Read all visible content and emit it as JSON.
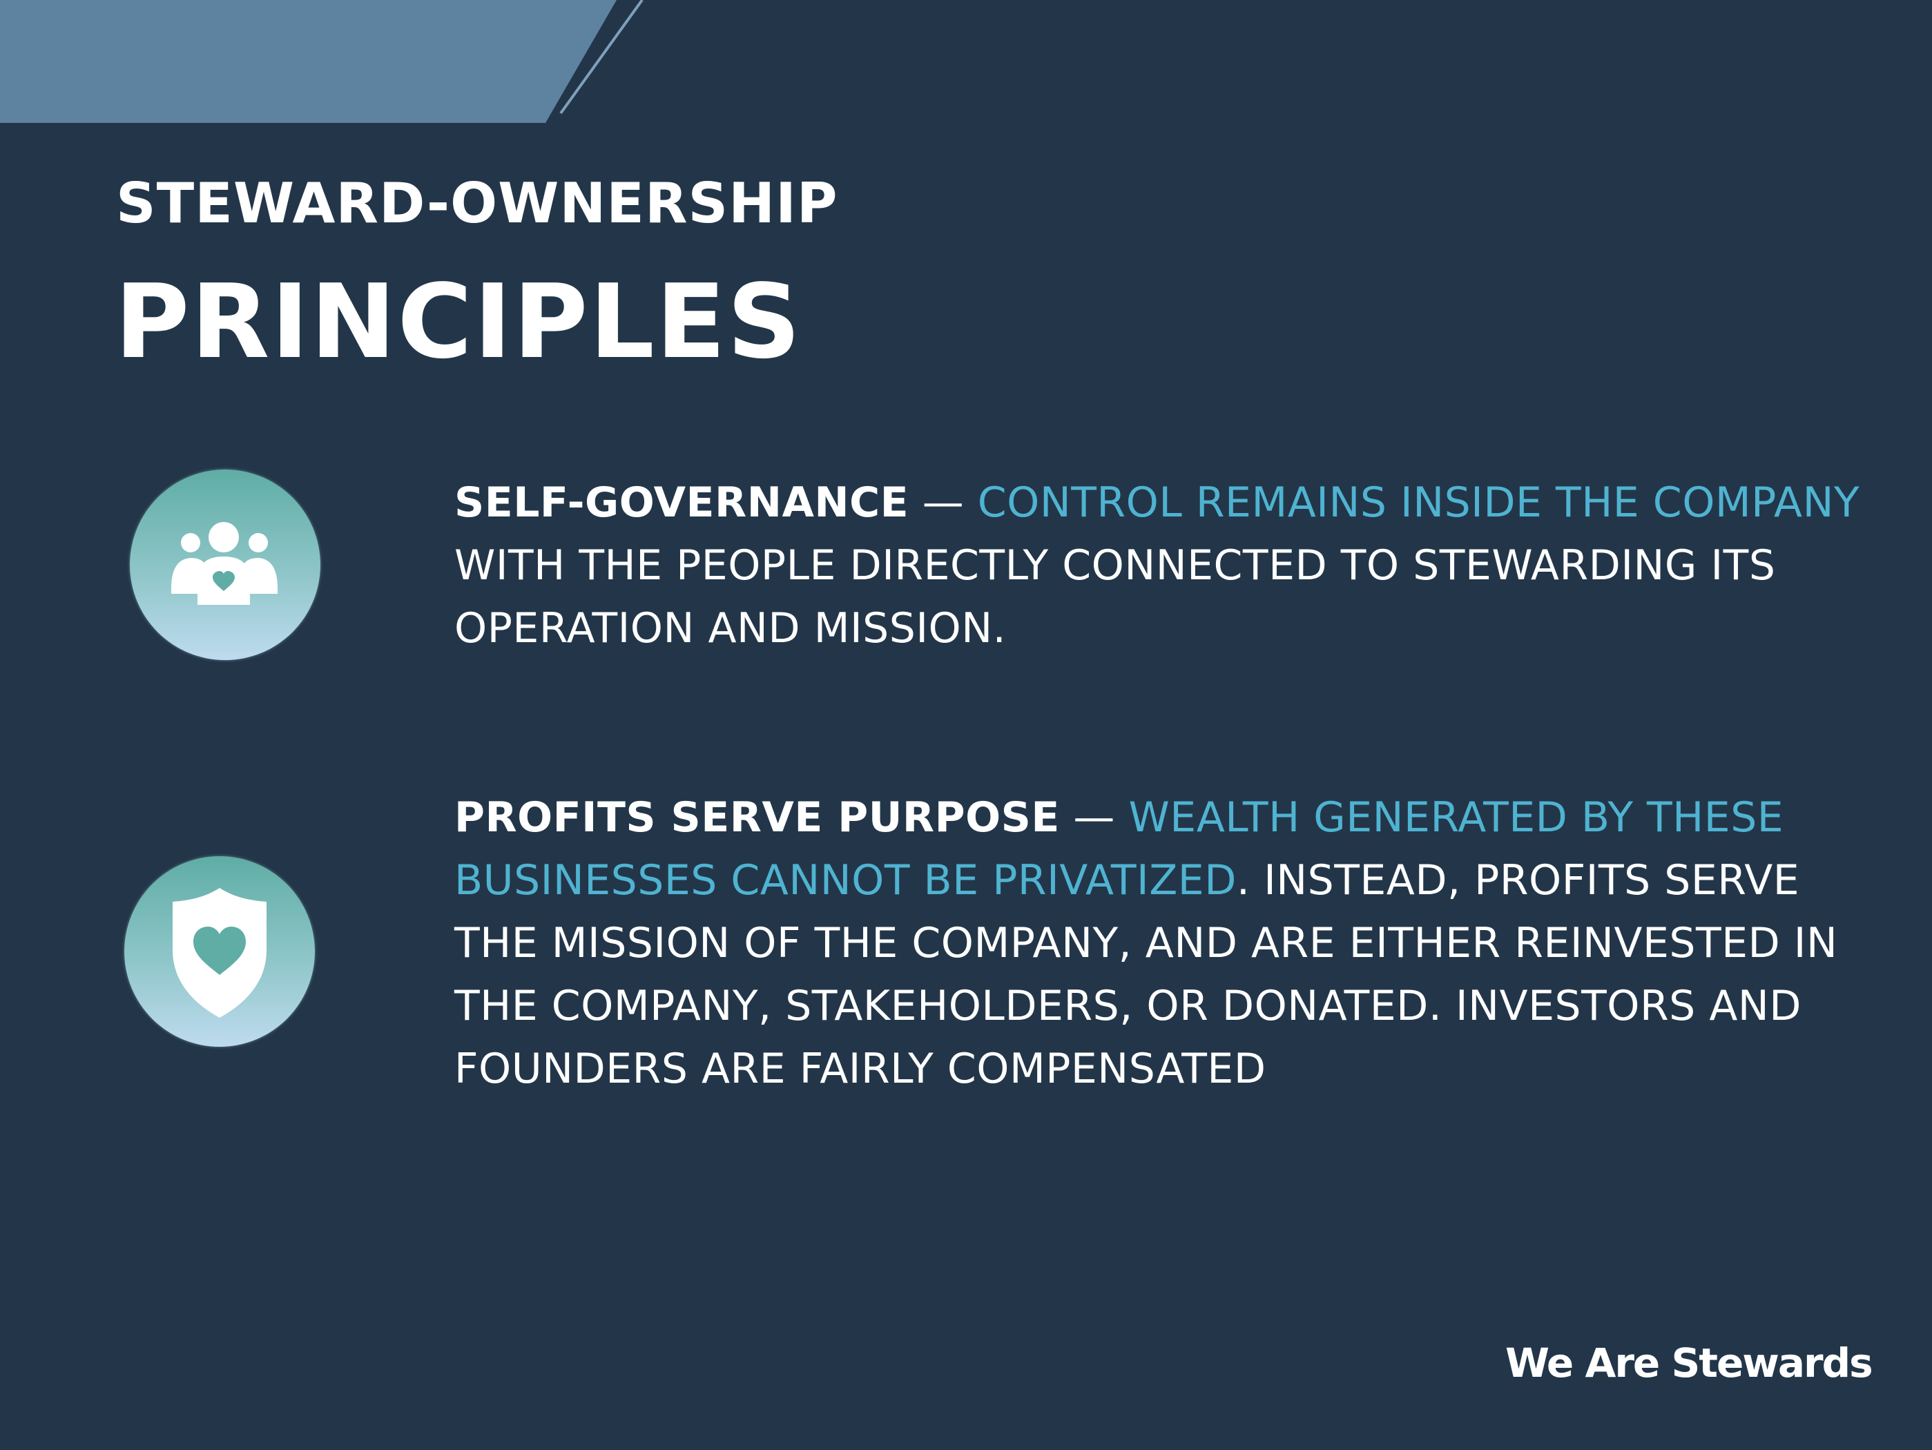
{
  "slide": {
    "heading_small": "STEWARD-OWNERSHIP",
    "heading_large": "PRINCIPLES"
  },
  "principles": [
    {
      "icon": "family-heart-icon",
      "term": "SELF-GOVERNANCE",
      "dash": " — ",
      "highlight": "CONTROL REMAINS INSIDE THE COMPANY",
      "rest": " WITH THE PEOPLE DIRECTLY CONNECTED TO STEWARDING ITS OPERATION AND MISSION."
    },
    {
      "icon": "shield-heart-icon",
      "term": "PROFITS SERVE PURPOSE",
      "dash": " — ",
      "highlight": "WEALTH GENERATED BY THESE BUSINESSES CANNOT BE PRIVATIZED",
      "rest": ". INSTEAD, PROFITS SERVE THE MISSION OF THE COMPANY, AND ARE EITHER REINVESTED IN THE COMPANY, STAKEHOLDERS, OR DONATED. INVESTORS AND FOUNDERS ARE FAIRLY COMPENSATED"
    }
  ],
  "brand": "We Are Stewards",
  "colors": {
    "background": "#233649",
    "accent_text": "#4fb3d1",
    "corner_band": "#5e83a0",
    "icon_glyph": "#ffffff",
    "icon_heart": "#5fada5"
  }
}
